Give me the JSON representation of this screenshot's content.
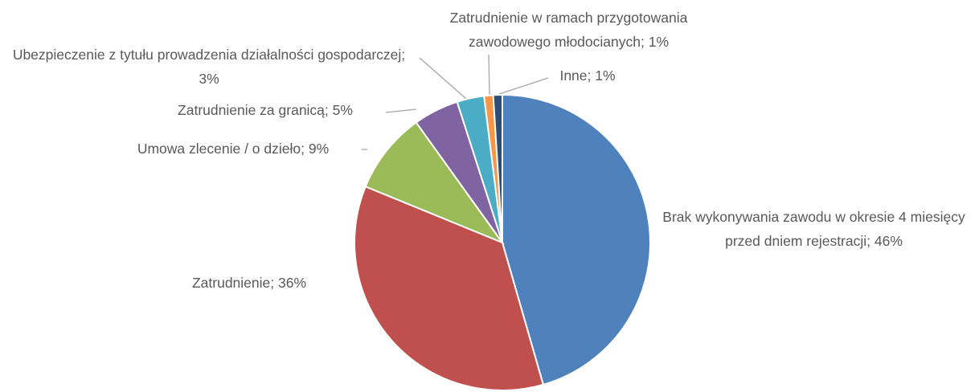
{
  "chart_data": {
    "type": "pie",
    "categories": [
      "Brak wykonywania zawodu w okresie 4 miesięcy przed dniem rejestracji",
      "Zatrudnienie",
      "Umowa zlecenie / o dzieło",
      "Zatrudnienie za granicą",
      "Ubezpieczenie z tytułu prowadzenia działalności gospodarczej",
      "Zatrudnienie w ramach przygotowania zawodowego młodocianych",
      "Inne"
    ],
    "values": [
      46,
      36,
      9,
      5,
      3,
      1,
      1
    ],
    "value_labels": [
      "46%",
      "36%",
      "9%",
      "5%",
      "3%",
      "1%",
      "1%"
    ],
    "label_separator": "; ",
    "colors": [
      "#4f81bd",
      "#c0504d",
      "#9bbb59",
      "#8064a2",
      "#4bacc6",
      "#f79646",
      "#2c4d75"
    ]
  }
}
